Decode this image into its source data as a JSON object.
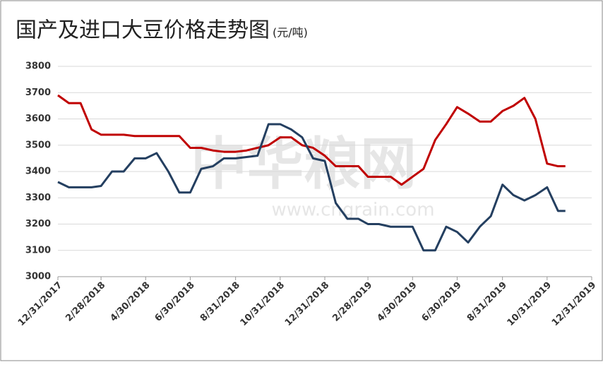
{
  "chart_data": {
    "type": "line",
    "title": "国产及进口大豆价格走势图",
    "unit": "(元/吨)",
    "watermark": "中华粮网",
    "watermark_url": "www.cngrain.com",
    "x": [
      "12/31/2017",
      "1/15/2018",
      "1/31/2018",
      "2/15/2018",
      "2/28/2018",
      "3/15/2018",
      "3/31/2018",
      "4/15/2018",
      "4/30/2018",
      "5/15/2018",
      "5/31/2018",
      "6/15/2018",
      "6/30/2018",
      "7/15/2018",
      "7/31/2018",
      "8/15/2018",
      "8/31/2018",
      "9/15/2018",
      "9/30/2018",
      "10/15/2018",
      "10/31/2018",
      "11/15/2018",
      "11/30/2018",
      "12/15/2018",
      "12/31/2018",
      "1/15/2019",
      "1/31/2019",
      "2/15/2019",
      "2/28/2019",
      "3/15/2019",
      "3/31/2019",
      "4/15/2019",
      "4/30/2019",
      "5/15/2019",
      "5/31/2019",
      "6/15/2019",
      "6/30/2019",
      "7/15/2019",
      "7/31/2019",
      "8/15/2019",
      "8/31/2019",
      "9/15/2019",
      "9/30/2019",
      "10/15/2019",
      "10/31/2019",
      "11/15/2019",
      "11/25/2019"
    ],
    "series": [
      {
        "color": "#c00000",
        "values": [
          3690,
          3660,
          3660,
          3560,
          3540,
          3540,
          3540,
          3535,
          3535,
          3535,
          3535,
          3535,
          3490,
          3490,
          3480,
          3475,
          3475,
          3480,
          3490,
          3500,
          3530,
          3530,
          3500,
          3490,
          3460,
          3420,
          3420,
          3420,
          3380,
          3380,
          3380,
          3350,
          3380,
          3410,
          3520,
          3580,
          3645,
          3620,
          3590,
          3590,
          3630,
          3650,
          3680,
          3600,
          3430,
          3420,
          3420
        ]
      },
      {
        "color": "#243f60",
        "values": [
          3360,
          3340,
          3340,
          3340,
          3345,
          3400,
          3400,
          3450,
          3450,
          3470,
          3400,
          3320,
          3320,
          3410,
          3420,
          3450,
          3450,
          3455,
          3460,
          3580,
          3580,
          3560,
          3530,
          3450,
          3440,
          3280,
          3220,
          3220,
          3200,
          3200,
          3190,
          3190,
          3190,
          3100,
          3100,
          3190,
          3170,
          3130,
          3190,
          3230,
          3350,
          3310,
          3290,
          3310,
          3340,
          3250,
          3250
        ]
      }
    ],
    "xlim": [
      "12/31/2017",
      "12/31/2019"
    ],
    "xticks": [
      "12/31/2017",
      "2/28/2018",
      "4/30/2018",
      "6/30/2018",
      "8/31/2018",
      "10/31/2018",
      "12/31/2018",
      "2/28/2019",
      "4/30/2019",
      "6/30/2019",
      "8/31/2019",
      "10/31/2019",
      "12/31/2019"
    ],
    "ylim": [
      3000,
      3800
    ],
    "yticks": [
      3000,
      3100,
      3200,
      3300,
      3400,
      3500,
      3600,
      3700,
      3800
    ],
    "grid": true
  }
}
